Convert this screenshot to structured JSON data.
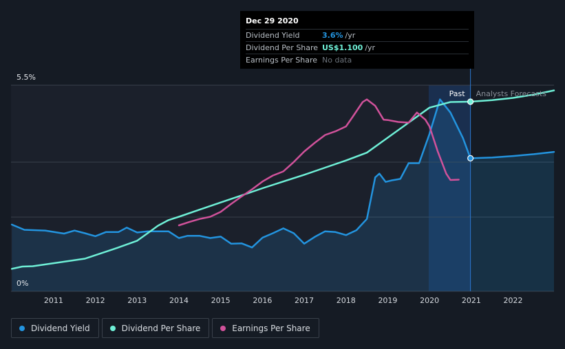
{
  "chart_data": {
    "type": "line",
    "y_axis": {
      "max_label": "5.5%",
      "min_label": "0%",
      "ylim": [
        0,
        5.5
      ]
    },
    "x_ticks": [
      "2011",
      "2012",
      "2013",
      "2014",
      "2015",
      "2016",
      "2017",
      "2018",
      "2019",
      "2020",
      "2021",
      "2022"
    ],
    "xlim": [
      2009.98,
      2022.98
    ],
    "labels": {
      "past": "Past",
      "forecast": "Analysts Forecasts"
    },
    "forecast_start": 2020.98,
    "highlight_start": 2019.98,
    "series": [
      {
        "name": "Dividend Yield",
        "color": "#2394df",
        "fill": true,
        "x": [
          2010.0,
          2010.3,
          2010.8,
          2011.25,
          2011.5,
          2011.75,
          2012.0,
          2012.25,
          2012.55,
          2012.75,
          2013.0,
          2013.25,
          2013.5,
          2013.75,
          2014.0,
          2014.2,
          2014.5,
          2014.75,
          2015.0,
          2015.25,
          2015.5,
          2015.75,
          2016.0,
          2016.25,
          2016.5,
          2016.75,
          2017.0,
          2017.25,
          2017.5,
          2017.75,
          2018.0,
          2018.25,
          2018.5,
          2018.7,
          2018.8,
          2018.95,
          2019.1,
          2019.3,
          2019.5,
          2019.75,
          2020.0,
          2020.25,
          2020.5,
          2020.8,
          2020.98
        ],
        "values": [
          1.78,
          1.64,
          1.62,
          1.54,
          1.62,
          1.55,
          1.47,
          1.58,
          1.58,
          1.7,
          1.57,
          1.6,
          1.6,
          1.6,
          1.42,
          1.48,
          1.48,
          1.42,
          1.46,
          1.27,
          1.28,
          1.17,
          1.43,
          1.55,
          1.68,
          1.55,
          1.27,
          1.45,
          1.6,
          1.58,
          1.5,
          1.63,
          1.93,
          3.04,
          3.14,
          2.92,
          2.96,
          3.0,
          3.42,
          3.42,
          4.2,
          5.12,
          4.77,
          4.09,
          3.55
        ]
      },
      {
        "name": "Dividend Yield (forecast)",
        "color": "#2394df",
        "fill": true,
        "forecast": true,
        "x": [
          2020.98,
          2021.5,
          2022.0,
          2022.5,
          2022.98
        ],
        "values": [
          3.55,
          3.57,
          3.61,
          3.66,
          3.72
        ]
      },
      {
        "name": "Dividend Per Share",
        "color": "#6ff0d7",
        "x": [
          2010.0,
          2010.25,
          2010.5,
          2011.0,
          2011.75,
          2012.5,
          2013.0,
          2013.25,
          2013.5,
          2013.75,
          2014.0,
          2014.5,
          2015.0,
          2015.5,
          2016.0,
          2016.5,
          2017.0,
          2017.5,
          2018.0,
          2018.5,
          2019.0,
          2019.5,
          2020.0,
          2020.5,
          2020.98
        ],
        "values": [
          0.6,
          0.66,
          0.67,
          0.75,
          0.87,
          1.15,
          1.35,
          1.55,
          1.75,
          1.9,
          1.99,
          2.18,
          2.37,
          2.56,
          2.75,
          2.93,
          3.11,
          3.3,
          3.49,
          3.7,
          4.1,
          4.5,
          4.9,
          5.05,
          5.06
        ]
      },
      {
        "name": "Dividend Per Share (forecast)",
        "color": "#6ff0d7",
        "forecast": true,
        "x": [
          2020.98,
          2021.5,
          2022.0,
          2022.5,
          2022.98
        ],
        "values": [
          5.06,
          5.1,
          5.16,
          5.25,
          5.36
        ]
      },
      {
        "name": "Earnings Per Share",
        "color": "#d1529b",
        "x": [
          2014.0,
          2014.25,
          2014.5,
          2014.75,
          2015.0,
          2015.25,
          2015.5,
          2015.75,
          2016.0,
          2016.25,
          2016.5,
          2016.75,
          2017.0,
          2017.25,
          2017.5,
          2017.75,
          2018.0,
          2018.15,
          2018.4,
          2018.5,
          2018.7,
          2018.9,
          2019.0,
          2019.25,
          2019.5,
          2019.7,
          2019.9,
          2020.0,
          2020.2,
          2020.4,
          2020.5,
          2020.7
        ],
        "values": [
          1.76,
          1.85,
          1.93,
          1.99,
          2.12,
          2.33,
          2.53,
          2.72,
          2.93,
          3.09,
          3.2,
          3.45,
          3.73,
          3.96,
          4.17,
          4.27,
          4.4,
          4.64,
          5.05,
          5.12,
          4.95,
          4.58,
          4.57,
          4.52,
          4.5,
          4.77,
          4.58,
          4.4,
          3.72,
          3.14,
          2.97,
          2.98
        ]
      }
    ]
  },
  "tooltip": {
    "date": "Dec 29 2020",
    "rows": [
      {
        "label": "Dividend Yield",
        "value": "3.6%",
        "unit": "/yr",
        "color": "#2394df"
      },
      {
        "label": "Dividend Per Share",
        "value": "US$1.100",
        "unit": "/yr",
        "color": "#6ff0d7"
      },
      {
        "label": "Earnings Per Share",
        "value": "No data",
        "unit": "",
        "color": "#6c737b"
      }
    ]
  },
  "legend": [
    {
      "label": "Dividend Yield",
      "color": "#2394df"
    },
    {
      "label": "Dividend Per Share",
      "color": "#6ff0d7"
    },
    {
      "label": "Earnings Per Share",
      "color": "#d1529b"
    }
  ],
  "colors": {
    "background": "#151b24",
    "plot_past": "#1b202b",
    "highlight": "#1a3356",
    "grid": "#3a414b"
  }
}
